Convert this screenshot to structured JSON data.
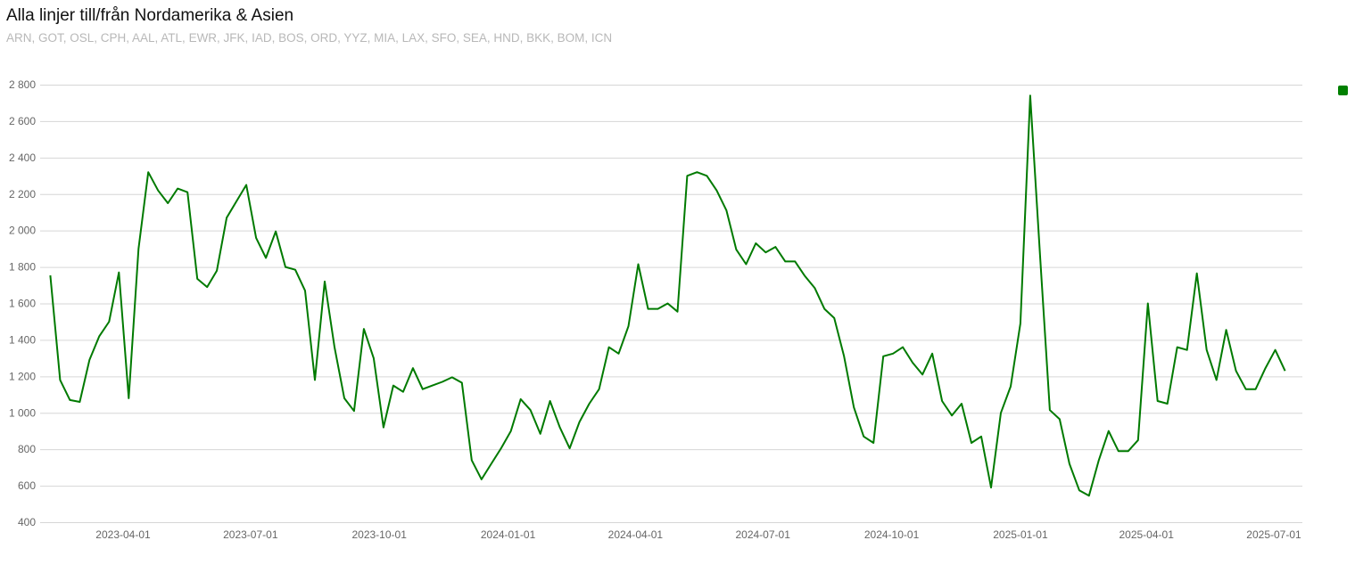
{
  "chart_data": {
    "type": "line",
    "title": "Alla linjer till/från Nordamerika & Asien",
    "subtitle": "ARN, GOT, OSL, CPH, AAL, ATL, EWR, JFK, IAD, BOS, ORD, YYZ, MIA, LAX, SFO, SEA, HND, BKK, BOM, ICN",
    "xlabel": "",
    "ylabel": "",
    "ylim": [
      400,
      2800
    ],
    "yticks": [
      400,
      600,
      800,
      1000,
      1200,
      1400,
      1600,
      1800,
      2000,
      2200,
      2400,
      2600,
      2800
    ],
    "ytick_labels": [
      "400",
      "600",
      "800",
      "1 000",
      "1 200",
      "1 400",
      "1 600",
      "1 800",
      "2 000",
      "2 200",
      "2 400",
      "2 600",
      "2 800"
    ],
    "xticks": [
      "2023-04-01",
      "2023-07-01",
      "2023-10-01",
      "2024-01-01",
      "2024-04-01",
      "2024-07-01",
      "2024-10-01",
      "2025-01-01",
      "2025-04-01",
      "2025-07-01"
    ],
    "grid": true,
    "legend": {
      "position": "top-right",
      "color": "#008000"
    },
    "series": [
      {
        "name": "",
        "color": "#007a00",
        "start_date": "2023-02-08",
        "step_days": 7,
        "values": [
          1754,
          1180,
          1070,
          1060,
          1290,
          1420,
          1500,
          1770,
          1080,
          1900,
          2320,
          2220,
          2150,
          2230,
          2210,
          1735,
          1690,
          1780,
          2070,
          2160,
          2250,
          1960,
          1850,
          1995,
          1800,
          1785,
          1670,
          1180,
          1720,
          1360,
          1080,
          1010,
          1460,
          1300,
          920,
          1150,
          1115,
          1245,
          1130,
          1150,
          1170,
          1195,
          1165,
          740,
          635,
          720,
          805,
          900,
          1075,
          1015,
          885,
          1065,
          920,
          805,
          950,
          1050,
          1130,
          1360,
          1325,
          1475,
          1815,
          1570,
          1570,
          1600,
          1555,
          2300,
          2320,
          2300,
          2220,
          2110,
          1895,
          1815,
          1930,
          1880,
          1910,
          1830,
          1830,
          1750,
          1685,
          1570,
          1520,
          1310,
          1030,
          870,
          835,
          1310,
          1325,
          1360,
          1275,
          1210,
          1325,
          1065,
          985,
          1050,
          835,
          870,
          590,
          1000,
          1145,
          1490,
          2740,
          1865,
          1015,
          965,
          720,
          575,
          545,
          740,
          900,
          790,
          790,
          850,
          1600,
          1065,
          1050,
          1360,
          1345,
          1765,
          1345,
          1180,
          1455,
          1230,
          1130,
          1130,
          1245,
          1345,
          1230
        ]
      }
    ]
  }
}
